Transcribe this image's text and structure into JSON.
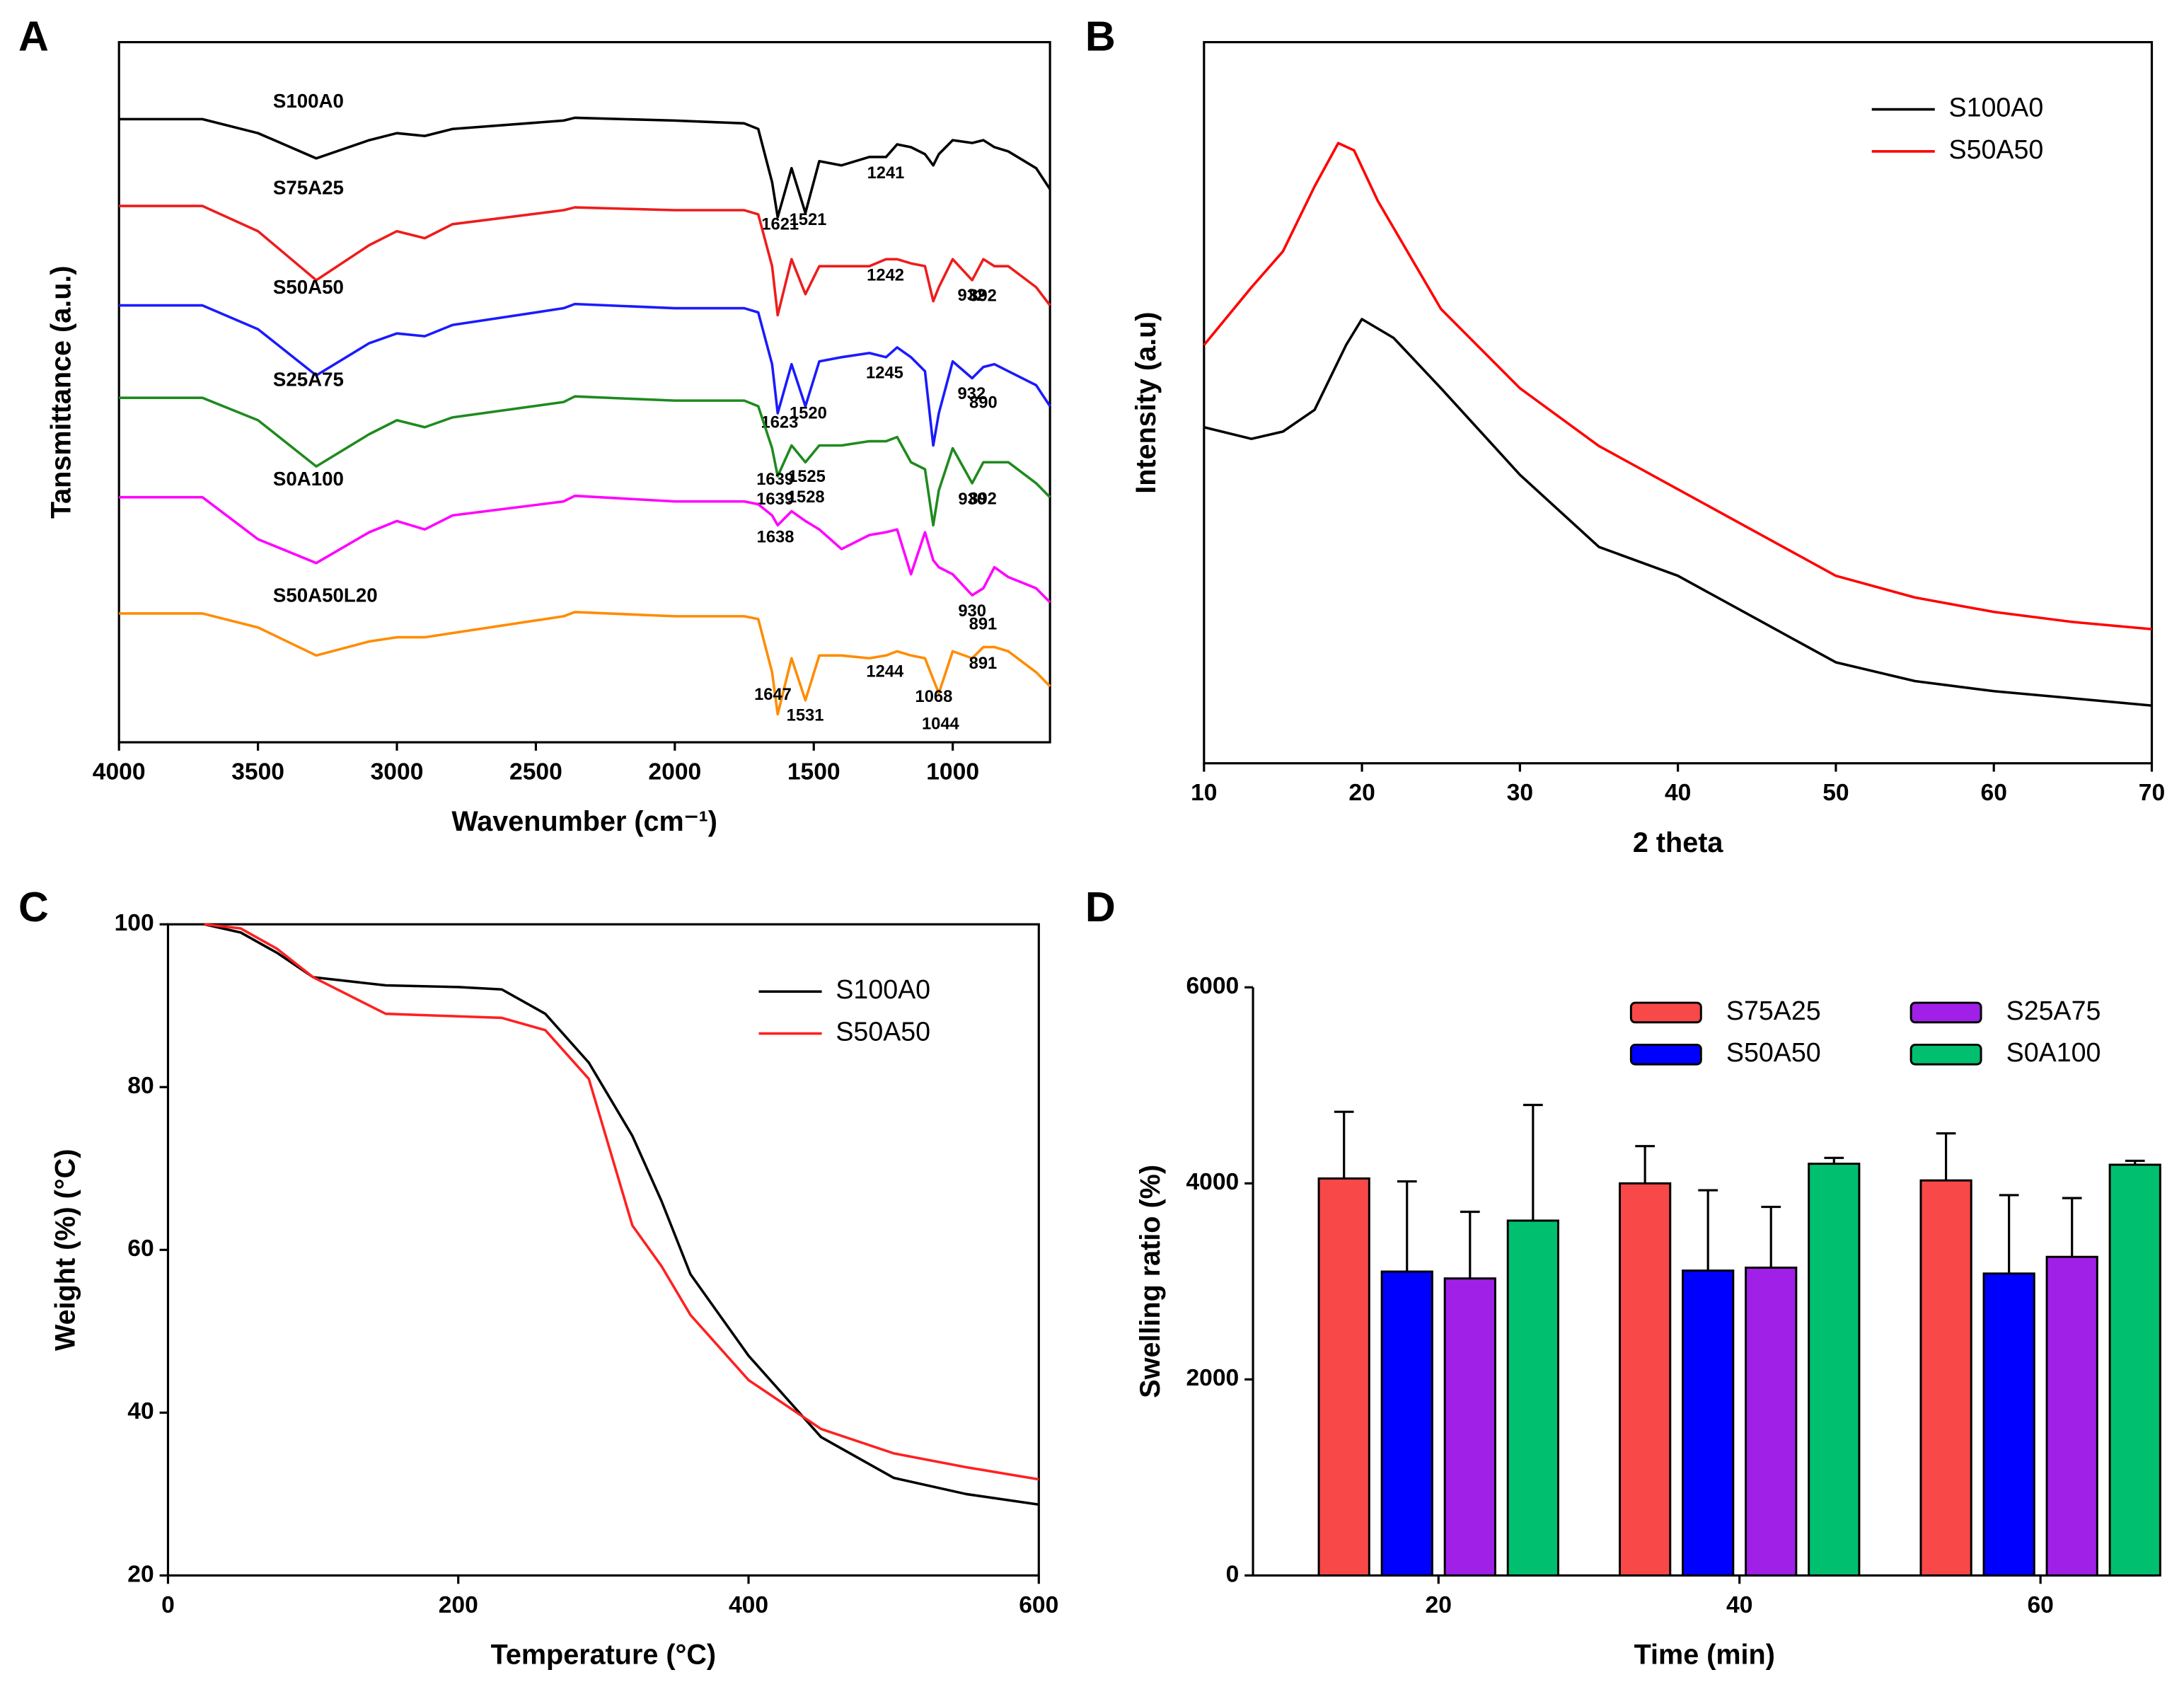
{
  "chart_data": [
    {
      "type": "line",
      "panel": "A",
      "xlabel": "Wavenumber (cm⁻¹)",
      "ylabel": "Tansmittance (a.u.)",
      "xlim": [
        4000,
        650
      ],
      "xticks": [
        4000,
        3500,
        3000,
        2500,
        2000,
        1500,
        1000
      ],
      "ylim": [
        0,
        500
      ],
      "x": [
        4000,
        3700,
        3500,
        3290,
        3100,
        3000,
        2900,
        2800,
        2400,
        2360,
        2000,
        1750,
        1700,
        1650,
        1630,
        1580,
        1530,
        1480,
        1400,
        1300,
        1240,
        1200,
        1150,
        1100,
        1070,
        1050,
        1000,
        930,
        890,
        850,
        800,
        700,
        650
      ],
      "series": [
        {
          "name": "S100A0",
          "color": "#000000",
          "peaks": [
            1621,
            1521,
            1241
          ],
          "values": [
            445,
            445,
            435,
            417,
            430,
            435,
            433,
            438,
            444,
            446,
            444,
            442,
            438,
            400,
            375,
            410,
            378,
            415,
            412,
            418,
            418,
            427,
            425,
            420,
            412,
            420,
            430,
            428,
            430,
            425,
            422,
            410,
            395
          ]
        },
        {
          "name": "S75A25",
          "color": "#ee1c1c",
          "peaks": [
            1242,
            932,
            892
          ],
          "values": [
            383,
            383,
            365,
            330,
            355,
            365,
            360,
            370,
            380,
            382,
            380,
            380,
            377,
            340,
            305,
            345,
            320,
            340,
            340,
            340,
            345,
            345,
            342,
            340,
            315,
            325,
            345,
            330,
            345,
            340,
            340,
            325,
            312
          ]
        },
        {
          "name": "S50A50",
          "color": "#1a1aff",
          "peaks": [
            1623,
            1520,
            1245,
            932,
            890
          ],
          "values": [
            312,
            312,
            295,
            262,
            285,
            292,
            290,
            298,
            310,
            313,
            310,
            310,
            307,
            270,
            235,
            270,
            240,
            272,
            275,
            278,
            275,
            282,
            275,
            265,
            212,
            235,
            272,
            260,
            268,
            270,
            265,
            255,
            240
          ]
        },
        {
          "name": "S25A75",
          "color": "#1f8a1f",
          "peaks": [
            1639,
            1525,
            1639,
            1528,
            930,
            892
          ],
          "values": [
            246,
            246,
            230,
            197,
            220,
            230,
            225,
            232,
            243,
            247,
            244,
            244,
            240,
            210,
            190,
            212,
            200,
            212,
            212,
            215,
            215,
            218,
            200,
            195,
            155,
            180,
            210,
            185,
            200,
            200,
            200,
            185,
            175
          ]
        },
        {
          "name": "S0A100",
          "color": "#ff00ff",
          "peaks": [
            1638,
            930,
            891
          ],
          "values": [
            175,
            175,
            145,
            128,
            150,
            158,
            152,
            162,
            172,
            176,
            172,
            172,
            170,
            162,
            155,
            165,
            158,
            152,
            138,
            148,
            150,
            152,
            120,
            150,
            130,
            125,
            120,
            105,
            110,
            125,
            118,
            110,
            100
          ]
        },
        {
          "name": "S50A50L20",
          "color": "#ff8c00",
          "peaks": [
            1647,
            1531,
            1244,
            1068,
            1044,
            891
          ],
          "values": [
            92,
            92,
            82,
            62,
            72,
            75,
            75,
            78,
            90,
            93,
            90,
            90,
            88,
            50,
            20,
            60,
            30,
            62,
            62,
            60,
            62,
            65,
            62,
            60,
            45,
            35,
            65,
            60,
            68,
            68,
            65,
            50,
            40
          ]
        }
      ]
    },
    {
      "type": "line",
      "panel": "B",
      "xlabel": "2 theta",
      "ylabel": "Intensity (a.u)",
      "legend": "upper right",
      "xlim": [
        10,
        70
      ],
      "xticks": [
        10,
        20,
        30,
        40,
        50,
        60,
        70
      ],
      "ylim": [
        0,
        100
      ],
      "series": [
        {
          "name": "S100A0",
          "color": "#000000",
          "x": [
            10,
            13,
            15,
            17,
            19,
            20,
            22,
            25,
            30,
            35,
            40,
            45,
            50,
            55,
            60,
            65,
            70
          ],
          "values": [
            46.6,
            45,
            46,
            49,
            58,
            61.6,
            59,
            52,
            40,
            30,
            26,
            20,
            14,
            11.4,
            10,
            9,
            8
          ]
        },
        {
          "name": "S50A50",
          "color": "#ff0000",
          "x": [
            10,
            13,
            15,
            17,
            18.5,
            19.5,
            21,
            25,
            30,
            35,
            40,
            45,
            50,
            55,
            60,
            65,
            70
          ],
          "values": [
            58,
            66,
            71,
            80,
            86,
            85,
            78,
            63,
            52,
            44,
            38,
            32,
            26,
            23,
            21,
            19.6,
            18.6
          ]
        }
      ]
    },
    {
      "type": "line",
      "panel": "C",
      "xlabel": "Temperature (°C)",
      "ylabel": "Weight (%) (°C)",
      "legend": "upper right",
      "xlim": [
        0,
        600
      ],
      "xticks": [
        0,
        200,
        400,
        600
      ],
      "ylim": [
        20,
        100
      ],
      "yticks": [
        20,
        40,
        60,
        80,
        100
      ],
      "x": [
        25,
        50,
        75,
        100,
        150,
        200,
        230,
        260,
        290,
        320,
        340,
        360,
        400,
        450,
        500,
        550,
        600
      ],
      "series": [
        {
          "name": "S100A0",
          "color": "#000000",
          "values": [
            100,
            99,
            96.5,
            93.5,
            92.5,
            92.3,
            92,
            89,
            83,
            74,
            66,
            57,
            47,
            37,
            32,
            30,
            28.7
          ]
        },
        {
          "name": "S50A50",
          "color": "#ff2020",
          "values": [
            100,
            99.5,
            97,
            93.5,
            89,
            88.7,
            88.5,
            87,
            81,
            63,
            58,
            52,
            44,
            38,
            35,
            33.3,
            31.8
          ]
        }
      ]
    },
    {
      "type": "bar",
      "panel": "D",
      "xlabel": "Time (min)",
      "ylabel": "Swelling ratio (%)",
      "legend": "upper center",
      "categories": [
        "20",
        "40",
        "60"
      ],
      "ylim": [
        0,
        6000
      ],
      "yticks": [
        0,
        2000,
        4000,
        6000
      ],
      "series": [
        {
          "name": "S75A25",
          "color": "#f84848",
          "values": [
            4050,
            4000,
            4030
          ],
          "errors": [
            680,
            380,
            480
          ]
        },
        {
          "name": "S50A50",
          "color": "#0000ff",
          "values": [
            3100,
            3110,
            3080
          ],
          "errors": [
            920,
            820,
            800
          ]
        },
        {
          "name": "S25A75",
          "color": "#a020e8",
          "values": [
            3030,
            3140,
            3250
          ],
          "errors": [
            680,
            620,
            600
          ]
        },
        {
          "name": "S0A100",
          "color": "#00c070",
          "values": [
            3620,
            4200,
            4190
          ],
          "errors": [
            1180,
            60,
            40
          ]
        }
      ]
    }
  ]
}
